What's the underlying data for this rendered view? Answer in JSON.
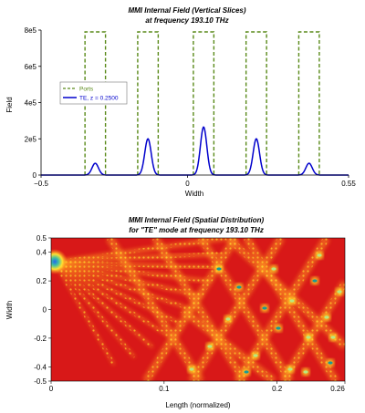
{
  "chart_data": [
    {
      "type": "line",
      "title": "MMI Internal Field (Vertical Slices)",
      "subtitle": "at frequency 193.10 THz",
      "xlabel": "Width",
      "ylabel": "Field",
      "xlim": [
        -0.5,
        0.55
      ],
      "ylim": [
        0,
        800000
      ],
      "x_tick_labels": [
        "-0.5",
        "0",
        "0.55"
      ],
      "y_tick_labels": [
        "0",
        "2e5",
        "4e5",
        "6e5",
        "8e5"
      ],
      "legend_position": "left",
      "series": [
        {
          "name": "Ports",
          "color": "#5a8a1a",
          "style": "dashed",
          "port_windows": [
            [
              -0.35,
              -0.28
            ],
            [
              -0.17,
              -0.1
            ],
            [
              0.02,
              0.09
            ],
            [
              0.2,
              0.27
            ],
            [
              0.38,
              0.45
            ]
          ],
          "port_level": 790000
        },
        {
          "name": "TE, z = 0.2500",
          "color": "#0000cc",
          "style": "solid",
          "peaks": [
            {
              "x": -0.315,
              "y": 65000
            },
            {
              "x": -0.135,
              "y": 200000
            },
            {
              "x": 0.055,
              "y": 265000
            },
            {
              "x": 0.235,
              "y": 200000
            },
            {
              "x": 0.415,
              "y": 65000
            }
          ]
        }
      ]
    },
    {
      "type": "heatmap",
      "title": "MMI Internal Field (Spatial Distribution)",
      "subtitle": "for \"TE\" mode at frequency 193.10 THz",
      "xlabel": "Length (normalized)",
      "ylabel": "Width",
      "xlim": [
        0,
        0.26
      ],
      "ylim": [
        -0.5,
        0.5
      ],
      "x_tick_labels": [
        "0",
        "0.1",
        "0.2",
        "0.26"
      ],
      "y_tick_labels": [
        "0.5",
        "0.4",
        "0.2",
        "0",
        "-0.2",
        "-0.4",
        "-0.5"
      ],
      "colormap": [
        "#d81818",
        "#f04818",
        "#ff9a20",
        "#ffd828",
        "#b8e880",
        "#1a9a98"
      ],
      "source_position": {
        "x": 0.0,
        "y": 0.33
      }
    }
  ]
}
